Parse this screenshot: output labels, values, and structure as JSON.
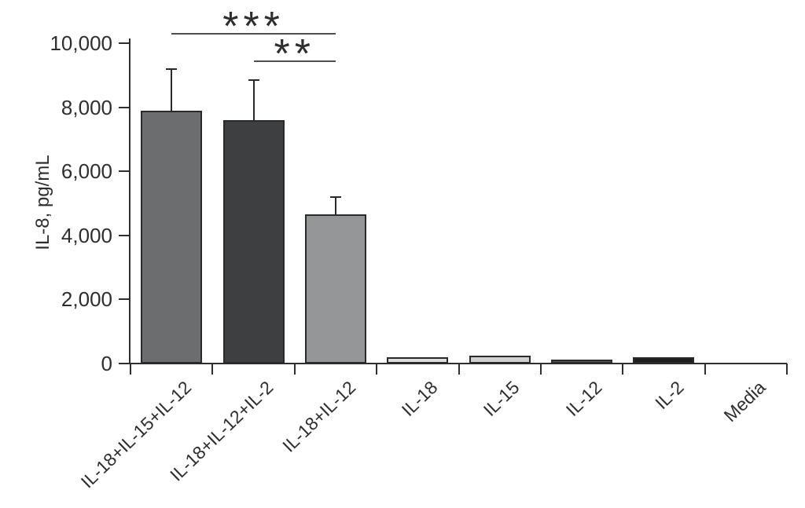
{
  "chart_data": {
    "type": "bar",
    "title": "",
    "xlabel": "",
    "ylabel": "IL-8, pg/mL",
    "ylim": [
      0,
      10000
    ],
    "yticks": [
      0,
      2000,
      4000,
      6000,
      8000,
      10000
    ],
    "ytick_labels": [
      "0",
      "2,000",
      "4,000",
      "6,000",
      "8,000",
      "10,000"
    ],
    "categories": [
      "IL-18+IL-15+IL-12",
      "IL-18+IL-12+IL-2",
      "IL-18+IL-12",
      "IL-18",
      "IL-15",
      "IL-12",
      "IL-2",
      "Media"
    ],
    "values": [
      7900,
      7600,
      4650,
      200,
      250,
      120,
      200,
      0
    ],
    "errors_plus": [
      1300,
      1250,
      550,
      0,
      0,
      0,
      0,
      0
    ],
    "bar_colors": [
      "#6b6d6f",
      "#3d3f41",
      "#949698",
      "#dcdcdc",
      "#d0d0d0",
      "#58595b",
      "#1e1e1e",
      "#ffffff"
    ],
    "bar_border_color": "#2a2a2a",
    "axis_color": "#2e2e2e",
    "grid": false,
    "legend_position": "none",
    "background_color": "#ffffff",
    "significance": [
      {
        "from_index": 0,
        "to_index": 2,
        "label": "***",
        "line_y_value": 10320
      },
      {
        "from_index": 1,
        "to_index": 2,
        "label": "**",
        "line_y_value": 9460
      }
    ]
  }
}
